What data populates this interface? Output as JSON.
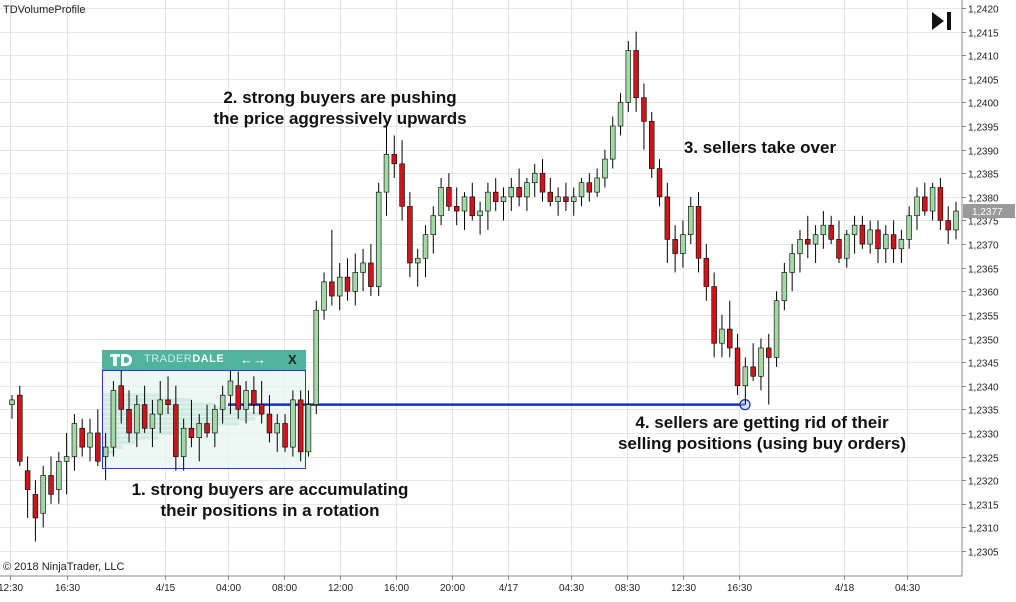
{
  "indicator_name": "TDVolumeProfile",
  "copyright": "© 2018 NinjaTrader, LLC",
  "widget": {
    "brand_light": "TRADER",
    "brand_bold": "DALE",
    "arrows": "←→",
    "close": "X"
  },
  "annotations": {
    "a1": "1. strong buyers are accumulating\ntheir positions in a rotation",
    "a2": "2. strong buyers are pushing\nthe price aggressively upwards",
    "a3": "3. sellers take over",
    "a4": "4. sellers are getting rid of their\nselling positions (using buy orders)"
  },
  "colors": {
    "up": "#a3d9a5",
    "down": "#d0141b",
    "wick": "#000000",
    "level_line": "#1a2fb5",
    "grid": "#e6e6e6",
    "profile": "#4fb39d",
    "current_price_bg": "#9a9a9a"
  },
  "chart_data": {
    "type": "candlestick",
    "y_ticks": [
      "1,2305",
      "1,2310",
      "1,2315",
      "1,2320",
      "1,2325",
      "1,2330",
      "1,2335",
      "1,2340",
      "1,2345",
      "1,2350",
      "1,2355",
      "1,2360",
      "1,2365",
      "1,2370",
      "1,2375",
      "1,2380",
      "1,2385",
      "1,2390",
      "1,2395",
      "1,2400",
      "1,2405",
      "1,2410",
      "1,2415",
      "1,2420"
    ],
    "ylim": [
      1.2302,
      1.2421
    ],
    "x_ticks": [
      "12:30",
      "16:30",
      "4/15",
      "04:00",
      "08:00",
      "12:00",
      "16:00",
      "20:00",
      "4/17",
      "04:30",
      "08:30",
      "12:30",
      "16:30",
      "4/18",
      "04:30"
    ],
    "current_price": "1,2377",
    "level": 1.2336,
    "ohlc": [
      [
        1.2336,
        1.2338,
        1.2333,
        1.2337
      ],
      [
        1.2338,
        1.234,
        1.2323,
        1.2324
      ],
      [
        1.2322,
        1.2325,
        1.2312,
        1.2318
      ],
      [
        1.2317,
        1.232,
        1.2307,
        1.2312
      ],
      [
        1.2313,
        1.2323,
        1.231,
        1.2321
      ],
      [
        1.2321,
        1.2325,
        1.2315,
        1.2317
      ],
      [
        1.2318,
        1.2326,
        1.2315,
        1.2324
      ],
      [
        1.2324,
        1.233,
        1.2317,
        1.2325
      ],
      [
        1.2325,
        1.2334,
        1.2322,
        1.2332
      ],
      [
        1.2331,
        1.2333,
        1.2325,
        1.2327
      ],
      [
        1.2327,
        1.2333,
        1.2324,
        1.233
      ],
      [
        1.233,
        1.2335,
        1.2323,
        1.2324
      ],
      [
        1.2325,
        1.233,
        1.232,
        1.2327
      ],
      [
        1.2327,
        1.2341,
        1.2325,
        1.2339
      ],
      [
        1.234,
        1.2344,
        1.2332,
        1.2335
      ],
      [
        1.2335,
        1.2339,
        1.2328,
        1.233
      ],
      [
        1.233,
        1.2338,
        1.2327,
        1.2336
      ],
      [
        1.2336,
        1.234,
        1.233,
        1.2331
      ],
      [
        1.2331,
        1.2337,
        1.2327,
        1.2334
      ],
      [
        1.2334,
        1.2341,
        1.233,
        1.2337
      ],
      [
        1.2337,
        1.2342,
        1.2334,
        1.2336
      ],
      [
        1.2336,
        1.234,
        1.2322,
        1.2325
      ],
      [
        1.2325,
        1.2333,
        1.2322,
        1.2331
      ],
      [
        1.2331,
        1.2337,
        1.2327,
        1.2329
      ],
      [
        1.2329,
        1.2334,
        1.2324,
        1.2332
      ],
      [
        1.2332,
        1.2336,
        1.2329,
        1.233
      ],
      [
        1.233,
        1.2336,
        1.2327,
        1.2335
      ],
      [
        1.2335,
        1.234,
        1.2332,
        1.2338
      ],
      [
        1.2338,
        1.2344,
        1.2334,
        1.2341
      ],
      [
        1.234,
        1.2343,
        1.2333,
        1.2335
      ],
      [
        1.2335,
        1.2341,
        1.2332,
        1.2339
      ],
      [
        1.2339,
        1.2342,
        1.2334,
        1.2336
      ],
      [
        1.2336,
        1.2341,
        1.2332,
        1.2334
      ],
      [
        1.2334,
        1.2338,
        1.2328,
        1.233
      ],
      [
        1.233,
        1.2334,
        1.2326,
        1.2332
      ],
      [
        1.2332,
        1.2334,
        1.2326,
        1.2327
      ],
      [
        1.2327,
        1.2339,
        1.2325,
        1.2337
      ],
      [
        1.2337,
        1.2339,
        1.2324,
        1.2326
      ],
      [
        1.2326,
        1.2339,
        1.2325,
        1.2336
      ],
      [
        1.2336,
        1.2358,
        1.2334,
        1.2356
      ],
      [
        1.2356,
        1.2364,
        1.2354,
        1.2362
      ],
      [
        1.2362,
        1.2373,
        1.2357,
        1.2359
      ],
      [
        1.2359,
        1.2366,
        1.2356,
        1.2363
      ],
      [
        1.2363,
        1.2367,
        1.2358,
        1.236
      ],
      [
        1.236,
        1.2368,
        1.2357,
        1.2364
      ],
      [
        1.2364,
        1.2369,
        1.236,
        1.2366
      ],
      [
        1.2366,
        1.237,
        1.2359,
        1.2361
      ],
      [
        1.2361,
        1.2383,
        1.2359,
        1.2381
      ],
      [
        1.2381,
        1.2395,
        1.2376,
        1.2389
      ],
      [
        1.2389,
        1.2393,
        1.2384,
        1.2387
      ],
      [
        1.2387,
        1.2392,
        1.2375,
        1.2378
      ],
      [
        1.2378,
        1.2381,
        1.2363,
        1.2366
      ],
      [
        1.2366,
        1.2369,
        1.2361,
        1.2367
      ],
      [
        1.2367,
        1.2374,
        1.2363,
        1.2372
      ],
      [
        1.2372,
        1.2378,
        1.2368,
        1.2376
      ],
      [
        1.2376,
        1.2384,
        1.2374,
        1.2382
      ],
      [
        1.2382,
        1.2385,
        1.2377,
        1.2378
      ],
      [
        1.2378,
        1.2382,
        1.2374,
        1.2377
      ],
      [
        1.2377,
        1.2381,
        1.2373,
        1.238
      ],
      [
        1.238,
        1.2383,
        1.2375,
        1.2376
      ],
      [
        1.2376,
        1.2379,
        1.2372,
        1.2377
      ],
      [
        1.2377,
        1.2383,
        1.2373,
        1.2381
      ],
      [
        1.2381,
        1.2384,
        1.2377,
        1.2379
      ],
      [
        1.2379,
        1.2382,
        1.2375,
        1.238
      ],
      [
        1.238,
        1.2384,
        1.2377,
        1.2382
      ],
      [
        1.2382,
        1.2386,
        1.2378,
        1.238
      ],
      [
        1.238,
        1.2384,
        1.2377,
        1.2383
      ],
      [
        1.2383,
        1.2387,
        1.238,
        1.2385
      ],
      [
        1.2385,
        1.2388,
        1.2379,
        1.2381
      ],
      [
        1.2381,
        1.2384,
        1.2378,
        1.2379
      ],
      [
        1.2379,
        1.2382,
        1.2376,
        1.238
      ],
      [
        1.238,
        1.2383,
        1.2377,
        1.2379
      ],
      [
        1.2379,
        1.2382,
        1.2376,
        1.238
      ],
      [
        1.238,
        1.2384,
        1.2378,
        1.2383
      ],
      [
        1.2383,
        1.2385,
        1.2379,
        1.2381
      ],
      [
        1.2381,
        1.2386,
        1.238,
        1.2384
      ],
      [
        1.2384,
        1.239,
        1.2382,
        1.2388
      ],
      [
        1.2388,
        1.2397,
        1.2386,
        1.2395
      ],
      [
        1.2395,
        1.2402,
        1.2393,
        1.24
      ],
      [
        1.24,
        1.2413,
        1.2398,
        1.2411
      ],
      [
        1.2411,
        1.2415,
        1.2398,
        1.2401
      ],
      [
        1.2401,
        1.2404,
        1.239,
        1.2396
      ],
      [
        1.2396,
        1.2398,
        1.2384,
        1.2386
      ],
      [
        1.2386,
        1.2388,
        1.2378,
        1.238
      ],
      [
        1.238,
        1.2383,
        1.2366,
        1.2371
      ],
      [
        1.2371,
        1.2374,
        1.2364,
        1.2368
      ],
      [
        1.2368,
        1.2375,
        1.2365,
        1.2372
      ],
      [
        1.2372,
        1.238,
        1.237,
        1.2378
      ],
      [
        1.2378,
        1.2381,
        1.2364,
        1.2367
      ],
      [
        1.2367,
        1.237,
        1.2358,
        1.2361
      ],
      [
        1.2361,
        1.2364,
        1.2346,
        1.2349
      ],
      [
        1.2349,
        1.2355,
        1.2346,
        1.2352
      ],
      [
        1.2352,
        1.2358,
        1.2346,
        1.2348
      ],
      [
        1.2348,
        1.2351,
        1.2338,
        1.234
      ],
      [
        1.234,
        1.2346,
        1.2336,
        1.2344
      ],
      [
        1.2344,
        1.2349,
        1.2341,
        1.2342
      ],
      [
        1.2342,
        1.235,
        1.2339,
        1.2348
      ],
      [
        1.2348,
        1.2351,
        1.2336,
        1.2346
      ],
      [
        1.2346,
        1.236,
        1.2344,
        1.2358
      ],
      [
        1.2358,
        1.2366,
        1.2356,
        1.2364
      ],
      [
        1.2364,
        1.237,
        1.236,
        1.2368
      ],
      [
        1.2368,
        1.2373,
        1.2364,
        1.2371
      ],
      [
        1.2371,
        1.2376,
        1.2367,
        1.237
      ],
      [
        1.237,
        1.2374,
        1.2366,
        1.2372
      ],
      [
        1.2372,
        1.2377,
        1.2369,
        1.2374
      ],
      [
        1.2374,
        1.2376,
        1.237,
        1.2371
      ],
      [
        1.2371,
        1.2375,
        1.2366,
        1.2367
      ],
      [
        1.2367,
        1.2373,
        1.2365,
        1.2372
      ],
      [
        1.2372,
        1.2376,
        1.2368,
        1.2374
      ],
      [
        1.2374,
        1.2376,
        1.2369,
        1.237
      ],
      [
        1.237,
        1.2375,
        1.2368,
        1.2373
      ],
      [
        1.2373,
        1.2375,
        1.2366,
        1.2369
      ],
      [
        1.2369,
        1.2374,
        1.2366,
        1.2372
      ],
      [
        1.2372,
        1.2375,
        1.2366,
        1.2369
      ],
      [
        1.2369,
        1.2373,
        1.2366,
        1.2371
      ],
      [
        1.2371,
        1.2378,
        1.2369,
        1.2376
      ],
      [
        1.2376,
        1.2382,
        1.2373,
        1.238
      ],
      [
        1.238,
        1.2383,
        1.2376,
        1.2377
      ],
      [
        1.2377,
        1.2383,
        1.2375,
        1.2382
      ],
      [
        1.2382,
        1.2384,
        1.2373,
        1.2375
      ],
      [
        1.2375,
        1.2378,
        1.237,
        1.2373
      ],
      [
        1.2373,
        1.2379,
        1.2371,
        1.2377
      ]
    ],
    "profile": {
      "price_from": 1.2338,
      "price_to": 1.2326,
      "widths": [
        0.35,
        0.55,
        0.7,
        0.9,
        1.0,
        0.95,
        0.85,
        0.7,
        0.5,
        0.35,
        0.2,
        0.12,
        0.08
      ]
    }
  }
}
